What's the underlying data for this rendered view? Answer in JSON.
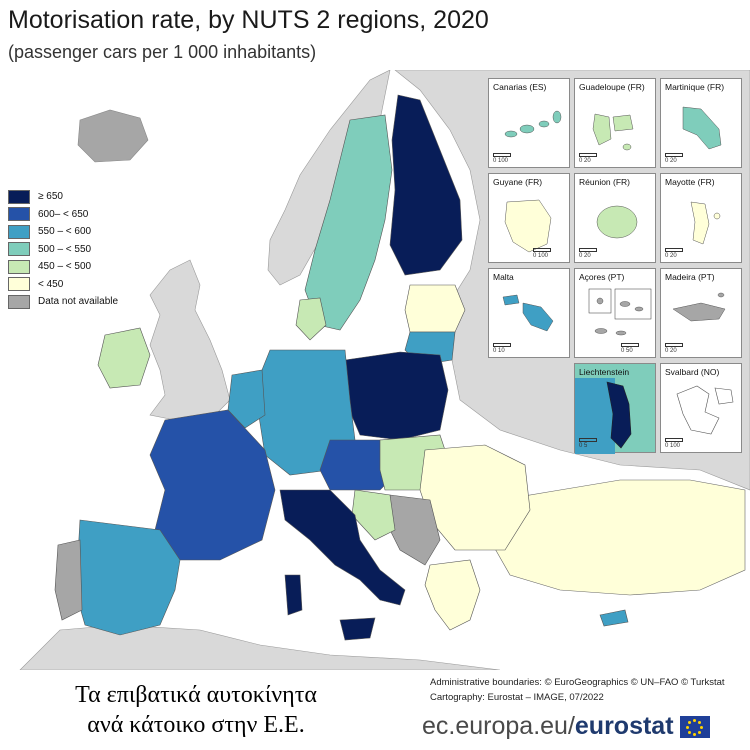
{
  "header": {
    "title": "Motorisation rate, by NUTS 2 regions, 2020",
    "subtitle": "(passenger cars per 1 000 inhabitants)"
  },
  "legend": {
    "items": [
      {
        "label": "≥ 650",
        "color": "#081d58"
      },
      {
        "label": "600– < 650",
        "color": "#2552a8"
      },
      {
        "label": "550 – < 600",
        "color": "#3f9fc4"
      },
      {
        "label": "500 – < 550",
        "color": "#7fcdbb"
      },
      {
        "label": "450 – < 500",
        "color": "#c7e9b4"
      },
      {
        "label": "< 450",
        "color": "#ffffd9"
      },
      {
        "label": "Data not available",
        "color": "#a6a6a6"
      }
    ]
  },
  "insets": [
    {
      "label": "Canarias (ES)",
      "scale": "0   100",
      "fill": "#7fcdbb"
    },
    {
      "label": "Guadeloupe (FR)",
      "scale": "0   20",
      "fill": "#c7e9b4"
    },
    {
      "label": "Martinique (FR)",
      "scale": "0   20",
      "fill": "#7fcdbb"
    },
    {
      "label": "Guyane (FR)",
      "scale": "0   100",
      "fill": "#ffffd9"
    },
    {
      "label": "Réunion (FR)",
      "scale": "0   20",
      "fill": "#c7e9b4"
    },
    {
      "label": "Mayotte (FR)",
      "scale": "0   20",
      "fill": "#ffffd9"
    },
    {
      "label": "Malta",
      "scale": "0   10",
      "fill": "#3f9fc4"
    },
    {
      "label": "Açores (PT)",
      "scale": "0   50",
      "fill": "#a6a6a6"
    },
    {
      "label": "Madeira (PT)",
      "scale": "0   20",
      "fill": "#a6a6a6"
    },
    {
      "label": "Liechtenstein",
      "scale": "0   5",
      "fill": "#081d58"
    },
    {
      "label": "Svalbard (NO)",
      "scale": "0   100",
      "fill": "#ffffff"
    }
  ],
  "credits": {
    "line1": "Administrative boundaries: © EuroGeographics © UN–FAO © Turkstat",
    "line2": "Cartography: Eurostat – IMAGE, 07/2022"
  },
  "caption": {
    "line1": "Τα επιβατικά αυτοκίνητα",
    "line2": "ανά κάτοικο στην Ε.Ε."
  },
  "brand": {
    "site": "ec.europa.eu/",
    "name": "eurostat"
  },
  "colors": {
    "sea": "#ffffff",
    "non_eu": "#d9d9d9",
    "border": "#555555"
  }
}
